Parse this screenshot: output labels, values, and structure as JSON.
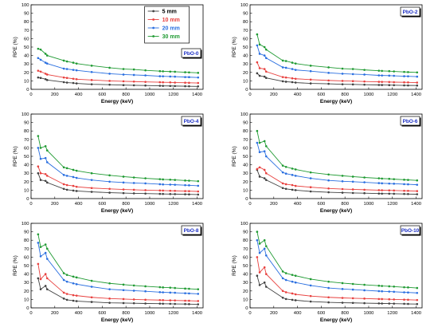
{
  "chart_data": [
    {
      "type": "line",
      "panel_label": "PbO-0",
      "xlabel": "Energy (keV)",
      "ylabel": "RPE (%)",
      "xlim": [
        0,
        1450
      ],
      "ylim": [
        0,
        100
      ],
      "xticks": [
        0,
        200,
        400,
        600,
        800,
        1000,
        1200,
        1400
      ],
      "yticks": [
        0,
        10,
        20,
        30,
        40,
        50,
        60,
        70,
        80,
        90,
        100
      ],
      "x": [
        59.5,
        81,
        122,
        136,
        276,
        303,
        356,
        384,
        511,
        662,
        779,
        867,
        964,
        1086,
        1112,
        1173,
        1213,
        1299,
        1332,
        1408
      ],
      "legend": {
        "position": "top-right"
      },
      "series": [
        {
          "name": "5 mm",
          "color": "#404040",
          "values": [
            14,
            13.5,
            12,
            11,
            8.5,
            8,
            7.5,
            7,
            6,
            5.5,
            5,
            4.8,
            4.5,
            4.2,
            4.1,
            4,
            3.9,
            3.7,
            3.6,
            3.5
          ]
        },
        {
          "name": "10 mm",
          "color": "#e8403e",
          "values": [
            22,
            21,
            18.5,
            17.5,
            14,
            13.5,
            12.5,
            12,
            11,
            10,
            9.5,
            9.2,
            8.8,
            8.4,
            8.3,
            8.2,
            8,
            7.8,
            7.7,
            7.5
          ]
        },
        {
          "name": "20 mm",
          "color": "#2a6fe0",
          "values": [
            37,
            35,
            31.5,
            30.5,
            24.5,
            24,
            23,
            22.5,
            20.5,
            18.5,
            17.5,
            17,
            16.5,
            15.5,
            15.4,
            15.2,
            15,
            14.5,
            14.4,
            14
          ]
        },
        {
          "name": "30 mm",
          "color": "#1f9a32",
          "values": [
            48,
            47,
            42,
            40,
            34,
            33,
            31.5,
            30.5,
            28,
            25.5,
            24,
            23.5,
            22.5,
            21.5,
            21.3,
            21,
            20.8,
            20.2,
            20,
            19.5
          ]
        }
      ]
    },
    {
      "type": "line",
      "panel_label": "PbO-2",
      "xlabel": "Energy (keV)",
      "ylabel": "RPE (%)",
      "xlim": [
        0,
        1450
      ],
      "ylim": [
        0,
        100
      ],
      "xticks": [
        0,
        200,
        400,
        600,
        800,
        1000,
        1200,
        1400
      ],
      "yticks": [
        0,
        10,
        20,
        30,
        40,
        50,
        60,
        70,
        80,
        90,
        100
      ],
      "x": [
        59.5,
        81,
        122,
        136,
        276,
        303,
        356,
        384,
        511,
        662,
        779,
        867,
        964,
        1086,
        1112,
        1173,
        1213,
        1299,
        1332,
        1408
      ],
      "series": [
        {
          "name": "5 mm",
          "color": "#404040",
          "values": [
            19,
            16,
            15,
            13.5,
            9.5,
            9,
            8.5,
            8,
            7,
            6.5,
            6,
            5.8,
            5.5,
            5.2,
            5.1,
            5,
            4.9,
            4.7,
            4.6,
            4.5
          ]
        },
        {
          "name": "10 mm",
          "color": "#e8403e",
          "values": [
            32,
            25,
            24,
            21,
            14.5,
            14,
            13,
            12.5,
            11.5,
            10.5,
            10,
            9.7,
            9.3,
            8.9,
            8.8,
            8.7,
            8.5,
            8.3,
            8.2,
            8
          ]
        },
        {
          "name": "20 mm",
          "color": "#2a6fe0",
          "values": [
            52,
            42,
            40,
            37,
            26,
            25.5,
            24,
            23,
            21.5,
            19.5,
            18.5,
            18,
            17.5,
            16.5,
            16.4,
            16.2,
            16,
            15.5,
            15.4,
            15
          ]
        },
        {
          "name": "30 mm",
          "color": "#1f9a32",
          "values": [
            65,
            53,
            50,
            47,
            34,
            33.5,
            31.5,
            30.5,
            28,
            26,
            24.5,
            24,
            23,
            22,
            21.8,
            21.5,
            21.2,
            20.6,
            20.4,
            20
          ]
        }
      ]
    },
    {
      "type": "line",
      "panel_label": "PbO-4",
      "xlabel": "Energy (keV)",
      "ylabel": "RPE (%)",
      "xlim": [
        0,
        1450
      ],
      "ylim": [
        0,
        100
      ],
      "xticks": [
        0,
        200,
        400,
        600,
        800,
        1000,
        1200,
        1400
      ],
      "yticks": [
        0,
        10,
        20,
        30,
        40,
        50,
        60,
        70,
        80,
        90,
        100
      ],
      "x": [
        59.5,
        81,
        122,
        136,
        276,
        303,
        356,
        384,
        511,
        662,
        779,
        867,
        964,
        1086,
        1112,
        1173,
        1213,
        1299,
        1332,
        1408
      ],
      "series": [
        {
          "name": "5 mm",
          "color": "#404040",
          "values": [
            30,
            22,
            21,
            19,
            11.5,
            10.5,
            9.5,
            9,
            8,
            7,
            6.5,
            6.2,
            6,
            5.6,
            5.5,
            5.4,
            5.3,
            5.1,
            5,
            4.8
          ]
        },
        {
          "name": "10 mm",
          "color": "#e8403e",
          "values": [
            38,
            30,
            29,
            27,
            17,
            16,
            15,
            14,
            12.5,
            11.5,
            10.8,
            10.4,
            10,
            9.6,
            9.5,
            9.3,
            9.2,
            8.9,
            8.8,
            8.5
          ]
        },
        {
          "name": "20 mm",
          "color": "#2a6fe0",
          "values": [
            60,
            47,
            48,
            43,
            28,
            27,
            25.5,
            24.5,
            22,
            20,
            19,
            18.5,
            18,
            17,
            16.8,
            16.6,
            16.4,
            15.9,
            15.7,
            15.2
          ]
        },
        {
          "name": "30 mm",
          "color": "#1f9a32",
          "values": [
            74,
            60,
            62,
            57,
            37,
            36,
            34,
            33,
            30,
            27.5,
            26,
            25,
            24,
            23,
            22.7,
            22.4,
            22.1,
            21.4,
            21.2,
            20.6
          ]
        }
      ]
    },
    {
      "type": "line",
      "panel_label": "PbO-6",
      "xlabel": "Energy (keV)",
      "ylabel": "RPE (%)",
      "xlim": [
        0,
        1450
      ],
      "ylim": [
        0,
        100
      ],
      "xticks": [
        0,
        200,
        400,
        600,
        800,
        1000,
        1200,
        1400
      ],
      "yticks": [
        0,
        10,
        20,
        30,
        40,
        50,
        60,
        70,
        80,
        90,
        100
      ],
      "x": [
        59.5,
        81,
        122,
        136,
        276,
        303,
        356,
        384,
        511,
        662,
        779,
        867,
        964,
        1086,
        1112,
        1173,
        1213,
        1299,
        1332,
        1408
      ],
      "series": [
        {
          "name": "5 mm",
          "color": "#404040",
          "values": [
            34,
            26,
            24,
            22,
            12.5,
            11.5,
            10.5,
            10,
            8.5,
            7.5,
            7,
            6.7,
            6.4,
            6,
            5.9,
            5.8,
            5.7,
            5.5,
            5.4,
            5.2
          ]
        },
        {
          "name": "10 mm",
          "color": "#e8403e",
          "values": [
            35,
            37,
            34,
            30,
            18,
            17,
            16,
            15,
            13.5,
            12,
            11.3,
            10.9,
            10.5,
            10,
            9.9,
            9.7,
            9.6,
            9.3,
            9.2,
            8.9
          ]
        },
        {
          "name": "20 mm",
          "color": "#2a6fe0",
          "values": [
            66,
            55,
            56,
            50,
            31,
            29.5,
            28,
            27,
            24,
            21.5,
            20.5,
            20,
            19.3,
            18.3,
            18.1,
            17.8,
            17.6,
            17.1,
            16.9,
            16.4
          ]
        },
        {
          "name": "30 mm",
          "color": "#1f9a32",
          "values": [
            80,
            66,
            68,
            62,
            39,
            37.5,
            35.5,
            34.5,
            31,
            28.5,
            27,
            26,
            25,
            24,
            23.7,
            23.4,
            23,
            22.3,
            22.1,
            21.5
          ]
        }
      ]
    },
    {
      "type": "line",
      "panel_label": "PbO-8",
      "xlabel": "Energy (keV)",
      "ylabel": "RPE (%)",
      "xlim": [
        0,
        1450
      ],
      "ylim": [
        0,
        100
      ],
      "xticks": [
        0,
        200,
        400,
        600,
        800,
        1000,
        1200,
        1400
      ],
      "yticks": [
        0,
        10,
        20,
        30,
        40,
        50,
        60,
        70,
        80,
        90,
        100
      ],
      "x": [
        59.5,
        81,
        122,
        136,
        276,
        303,
        356,
        384,
        511,
        662,
        779,
        867,
        964,
        1086,
        1112,
        1173,
        1213,
        1299,
        1332,
        1408
      ],
      "series": [
        {
          "name": "5 mm",
          "color": "#404040",
          "values": [
            35,
            22,
            26,
            22,
            11,
            9.5,
            8.5,
            8,
            7,
            6,
            5.7,
            5.5,
            5.2,
            5,
            4.9,
            4.8,
            4.7,
            4.5,
            4.4,
            4.2
          ]
        },
        {
          "name": "10 mm",
          "color": "#e8403e",
          "values": [
            52,
            34,
            40,
            35,
            18,
            16.5,
            15,
            14.5,
            12.5,
            11,
            10.4,
            10,
            9.6,
            9.2,
            9.1,
            8.9,
            8.8,
            8.5,
            8.4,
            8.1
          ]
        },
        {
          "name": "20 mm",
          "color": "#2a6fe0",
          "values": [
            77,
            61,
            65,
            58,
            33,
            31,
            29,
            28,
            25,
            22,
            21,
            20.3,
            19.6,
            18.6,
            18.4,
            18.1,
            17.9,
            17.3,
            17.1,
            16.6
          ]
        },
        {
          "name": "30 mm",
          "color": "#1f9a32",
          "values": [
            87,
            72,
            75,
            70,
            41,
            39,
            37,
            36,
            32,
            29,
            27.5,
            26.5,
            25.5,
            24.5,
            24.2,
            23.9,
            23.5,
            22.8,
            22.6,
            22
          ]
        }
      ]
    },
    {
      "type": "line",
      "panel_label": "PbO-10",
      "xlabel": "Energy (keV)",
      "ylabel": "RPE (%)",
      "xlim": [
        0,
        1450
      ],
      "ylim": [
        0,
        100
      ],
      "xticks": [
        0,
        200,
        400,
        600,
        800,
        1000,
        1200,
        1400
      ],
      "yticks": [
        0,
        10,
        20,
        30,
        40,
        50,
        60,
        70,
        80,
        90,
        100
      ],
      "x": [
        59.5,
        81,
        122,
        136,
        276,
        303,
        356,
        384,
        511,
        662,
        779,
        867,
        964,
        1086,
        1112,
        1173,
        1213,
        1299,
        1332,
        1408
      ],
      "series": [
        {
          "name": "5 mm",
          "color": "#404040",
          "values": [
            38,
            27,
            30,
            25,
            12,
            10.5,
            9.5,
            9,
            7.5,
            6.5,
            6.1,
            5.9,
            5.6,
            5.3,
            5.2,
            5.1,
            5,
            4.8,
            4.7,
            4.5
          ]
        },
        {
          "name": "10 mm",
          "color": "#e8403e",
          "values": [
            60,
            42,
            48,
            40,
            20,
            18.5,
            17,
            16,
            14,
            12.5,
            11.8,
            11.4,
            11,
            10.5,
            10.4,
            10.2,
            10,
            9.7,
            9.6,
            9.3
          ]
        },
        {
          "name": "20 mm",
          "color": "#2a6fe0",
          "values": [
            80,
            65,
            70,
            62,
            35,
            33,
            31,
            30,
            26.5,
            23.5,
            22.3,
            21.6,
            20.8,
            19.8,
            19.6,
            19.3,
            19,
            18.4,
            18.2,
            17.7
          ]
        },
        {
          "name": "30 mm",
          "color": "#1f9a32",
          "values": [
            90,
            76,
            80,
            73,
            43,
            41,
            39,
            38,
            34,
            31,
            29.3,
            28.3,
            27.3,
            26.2,
            25.9,
            25.5,
            25.2,
            24.4,
            24.2,
            23.5
          ]
        }
      ]
    }
  ]
}
